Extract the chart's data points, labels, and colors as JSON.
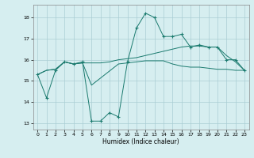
{
  "xlabel": "Humidex (Indice chaleur)",
  "bg_color": "#d6eef0",
  "grid_color": "#aacdd4",
  "line_color": "#1a7a6e",
  "xlim": [
    -0.5,
    23.5
  ],
  "ylim": [
    12.7,
    18.6
  ],
  "yticks": [
    13,
    14,
    15,
    16,
    17,
    18
  ],
  "xticks": [
    0,
    1,
    2,
    3,
    4,
    5,
    6,
    7,
    8,
    9,
    10,
    11,
    12,
    13,
    14,
    15,
    16,
    17,
    18,
    19,
    20,
    21,
    22,
    23
  ],
  "line1_x": [
    0,
    1,
    2,
    3,
    4,
    5,
    6,
    7,
    8,
    9,
    10,
    11,
    12,
    13,
    14,
    15,
    16,
    17,
    18,
    19,
    20,
    21,
    22,
    23
  ],
  "line1_y": [
    15.3,
    14.2,
    15.5,
    15.9,
    15.8,
    15.9,
    13.1,
    13.1,
    13.5,
    13.3,
    15.9,
    17.5,
    18.2,
    18.0,
    17.1,
    17.1,
    17.2,
    16.6,
    16.7,
    16.6,
    16.6,
    16.0,
    16.0,
    15.5
  ],
  "line2_x": [
    0,
    1,
    2,
    3,
    4,
    5,
    6,
    7,
    8,
    9,
    10,
    11,
    12,
    13,
    14,
    15,
    16,
    17,
    18,
    19,
    20,
    21,
    22,
    23
  ],
  "line2_y": [
    15.3,
    15.5,
    15.55,
    15.9,
    15.8,
    15.85,
    15.85,
    15.85,
    15.9,
    16.0,
    16.05,
    16.1,
    16.2,
    16.3,
    16.4,
    16.5,
    16.6,
    16.65,
    16.65,
    16.6,
    16.6,
    16.2,
    15.9,
    15.5
  ],
  "line3_x": [
    0,
    1,
    2,
    3,
    4,
    5,
    6,
    9,
    10,
    11,
    12,
    13,
    14,
    15,
    16,
    17,
    18,
    19,
    20,
    21,
    22,
    23
  ],
  "line3_y": [
    15.3,
    15.5,
    15.55,
    15.9,
    15.8,
    15.85,
    14.8,
    15.8,
    15.85,
    15.9,
    15.95,
    15.95,
    15.95,
    15.8,
    15.7,
    15.65,
    15.65,
    15.6,
    15.55,
    15.55,
    15.5,
    15.5
  ]
}
